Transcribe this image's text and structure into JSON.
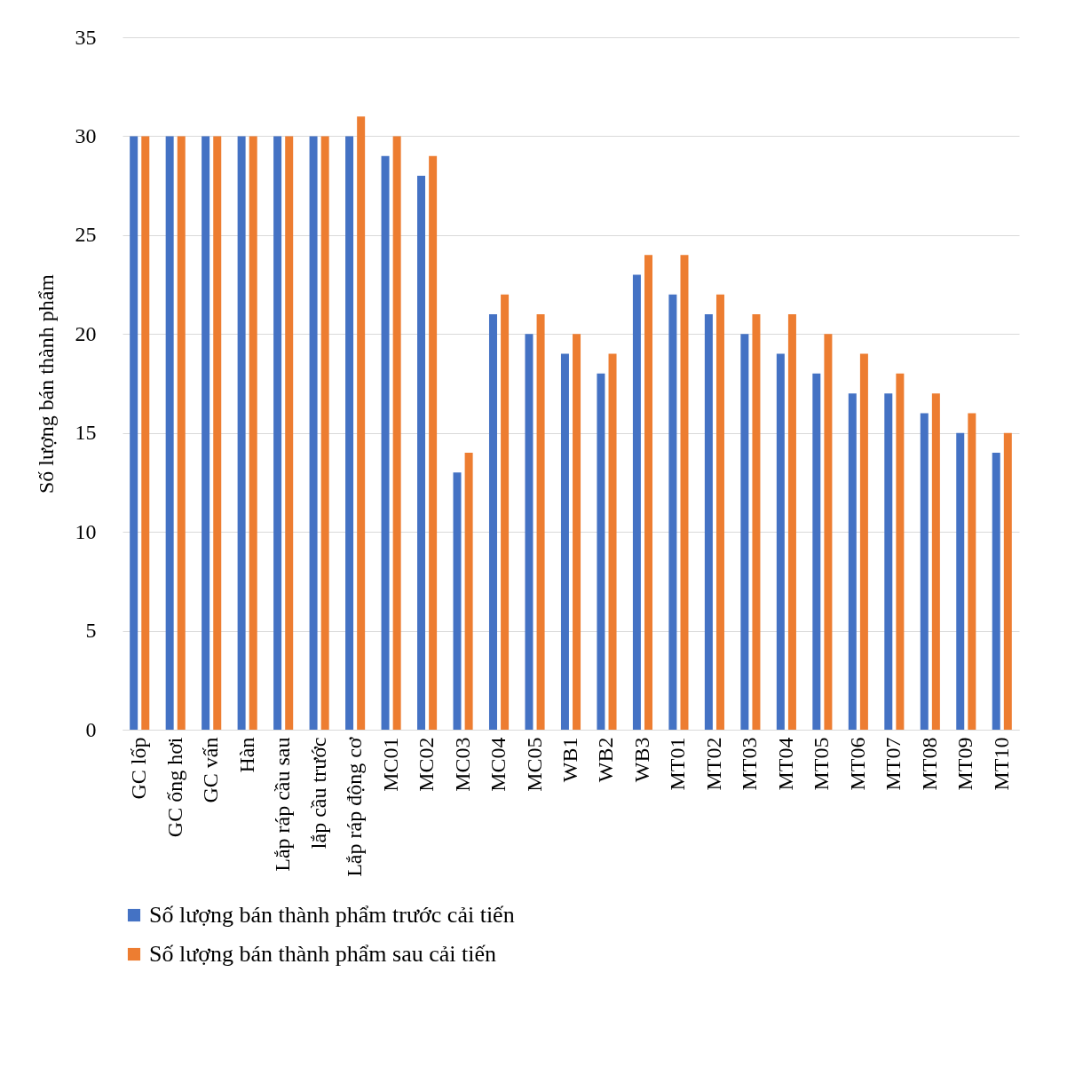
{
  "chart_data": {
    "type": "bar",
    "ylabel": "Số lượng bán thành phẩm",
    "categories": [
      "GC lốp",
      "GC ống hơi",
      "GC vấn",
      "Hàn",
      "Lắp ráp cầu sau",
      "lắp cầu trước",
      "Lắp ráp động cơ",
      "MC01",
      "MC02",
      "MC03",
      "MC04",
      "MC05",
      "WB1",
      "WB2",
      "WB3",
      "MT01",
      "MT02",
      "MT03",
      "MT04",
      "MT05",
      "MT06",
      "MT07",
      "MT08",
      "MT09",
      "MT10"
    ],
    "series": [
      {
        "name": "Số lượng bán thành phẩm trước cải tiến",
        "color": "#4472c4",
        "values": [
          30,
          30,
          30,
          30,
          30,
          30,
          30,
          29,
          28,
          13,
          21,
          20,
          19,
          18,
          23,
          22,
          21,
          20,
          19,
          18,
          17,
          17,
          16,
          15,
          14
        ]
      },
      {
        "name": "Số lượng bán thành phẩm sau cải tiến",
        "color": "#ed7d31",
        "values": [
          30,
          30,
          30,
          30,
          30,
          30,
          31,
          30,
          29,
          14,
          22,
          21,
          20,
          19,
          24,
          24,
          22,
          21,
          21,
          20,
          19,
          18,
          17,
          16,
          15
        ]
      }
    ],
    "ylim": [
      0,
      35
    ],
    "yticks": [
      0,
      5,
      10,
      15,
      20,
      25,
      30,
      35
    ],
    "grid": "y",
    "legend": "bottom"
  }
}
